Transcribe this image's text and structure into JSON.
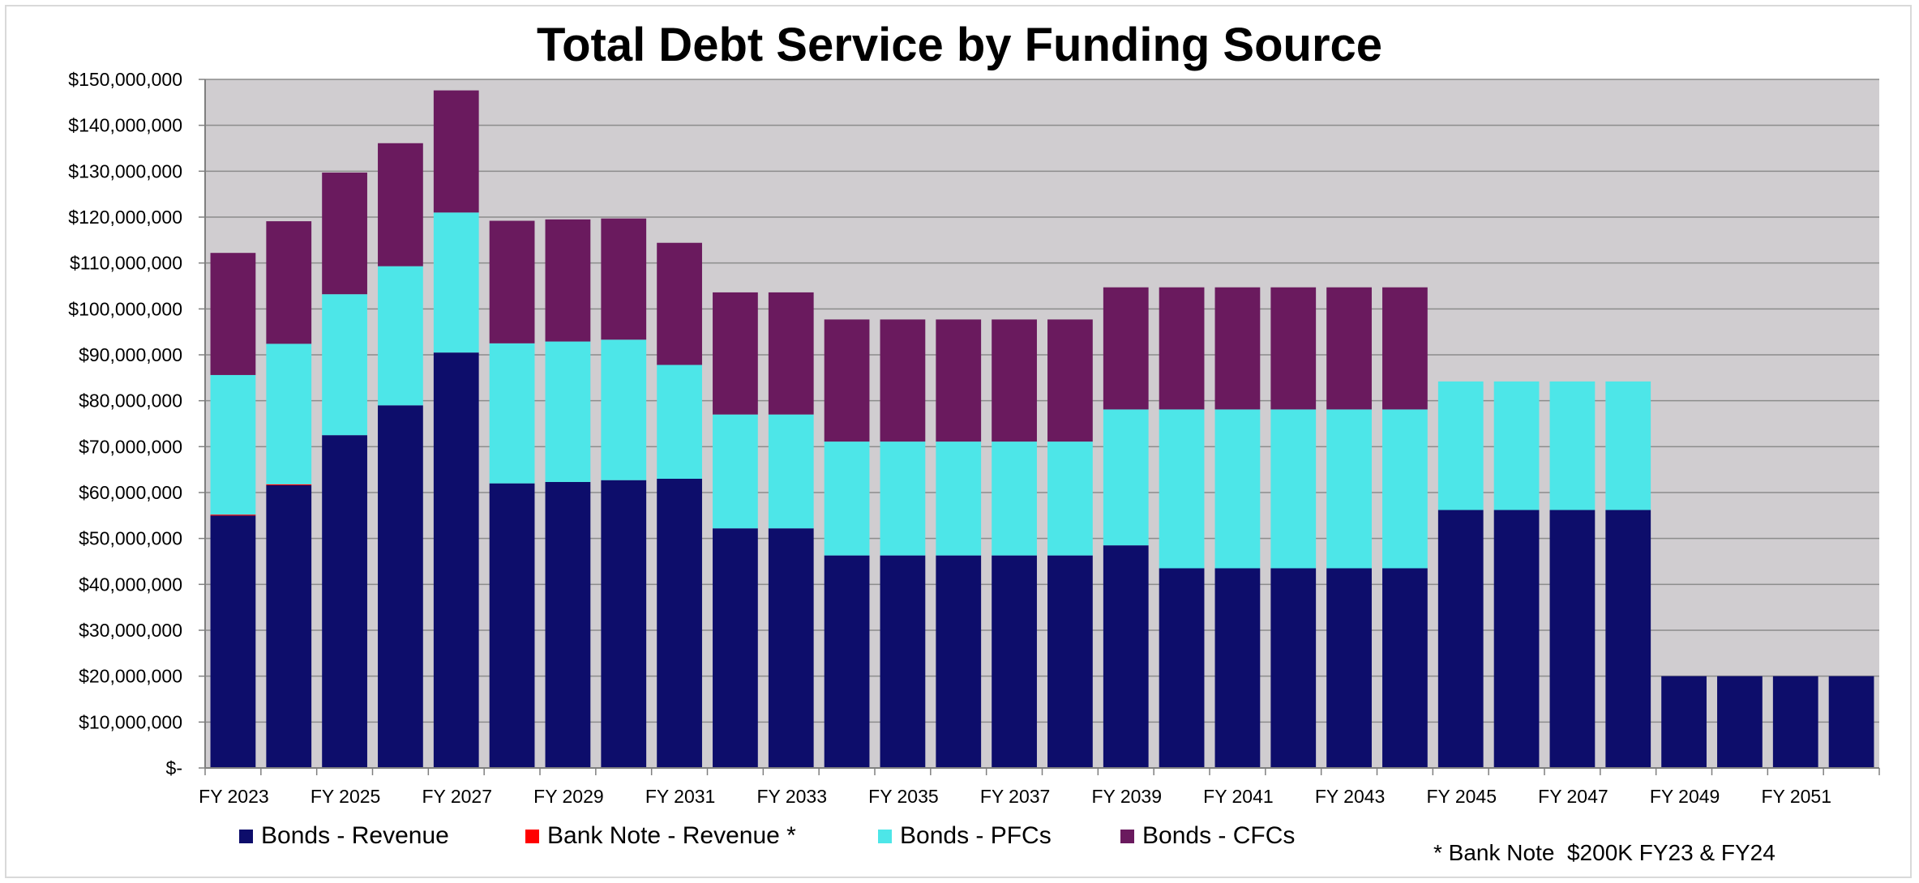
{
  "chart_data": {
    "type": "bar",
    "stacked": true,
    "title": "Total Debt Service by Funding Source",
    "xlabel": "",
    "ylabel": "",
    "ylim": [
      0,
      150000000
    ],
    "y_tick_step": 10000000,
    "y_tick_labels": [
      "$-",
      "$10,000,000",
      "$20,000,000",
      "$30,000,000",
      "$40,000,000",
      "$50,000,000",
      "$60,000,000",
      "$70,000,000",
      "$80,000,000",
      "$90,000,000",
      "$100,000,000",
      "$110,000,000",
      "$120,000,000",
      "$130,000,000",
      "$140,000,000",
      "$150,000,000"
    ],
    "categories": [
      "FY 2023",
      "FY 2024",
      "FY 2025",
      "FY 2026",
      "FY 2027",
      "FY 2028",
      "FY 2029",
      "FY 2030",
      "FY 2031",
      "FY 2032",
      "FY 2033",
      "FY 2034",
      "FY 2035",
      "FY 2036",
      "FY 2037",
      "FY 2038",
      "FY 2039",
      "FY 2040",
      "FY 2041",
      "FY 2042",
      "FY 2043",
      "FY 2044",
      "FY 2045",
      "FY 2046",
      "FY 2047",
      "FY 2048",
      "FY 2049",
      "FY 2050",
      "FY 2051",
      "FY 2052"
    ],
    "x_tick_labels": [
      "FY 2023",
      "",
      "FY 2025",
      "",
      "FY 2027",
      "",
      "FY 2029",
      "",
      "FY 2031",
      "",
      "FY 2033",
      "",
      "FY 2035",
      "",
      "FY 2037",
      "",
      "FY 2039",
      "",
      "FY 2041",
      "",
      "FY 2043",
      "",
      "FY 2045",
      "",
      "FY 2047",
      "",
      "FY 2049",
      "",
      "FY 2051",
      ""
    ],
    "series": [
      {
        "name": "Bonds - Revenue",
        "color": "#0d0d6b",
        "values": [
          55000000,
          61600000,
          72500000,
          79000000,
          90500000,
          62000000,
          62300000,
          62700000,
          63000000,
          52200000,
          52200000,
          46300000,
          46300000,
          46300000,
          46300000,
          46300000,
          48500000,
          43500000,
          43500000,
          43500000,
          43500000,
          43500000,
          56200000,
          56200000,
          56200000,
          56200000,
          20000000,
          20000000,
          20000000,
          20000000
        ]
      },
      {
        "name": "Bank Note - Revenue *",
        "color": "#ff0000",
        "values": [
          200000,
          200000,
          0,
          0,
          0,
          0,
          0,
          0,
          0,
          0,
          0,
          0,
          0,
          0,
          0,
          0,
          0,
          0,
          0,
          0,
          0,
          0,
          0,
          0,
          0,
          0,
          0,
          0,
          0,
          0
        ]
      },
      {
        "name": "Bonds - PFCs",
        "color": "#4de6e8",
        "values": [
          30400000,
          30600000,
          30700000,
          30300000,
          30500000,
          30500000,
          30600000,
          30600000,
          24800000,
          24800000,
          24800000,
          24800000,
          24800000,
          24800000,
          24800000,
          24800000,
          29600000,
          34600000,
          34600000,
          34600000,
          34600000,
          34600000,
          28000000,
          28000000,
          28000000,
          28000000,
          0,
          0,
          0,
          0
        ]
      },
      {
        "name": "Bonds - CFCs",
        "color": "#6a1a5e",
        "values": [
          26600000,
          26700000,
          26500000,
          26800000,
          26600000,
          26700000,
          26600000,
          26400000,
          26600000,
          26600000,
          26600000,
          26600000,
          26600000,
          26600000,
          26600000,
          26600000,
          26600000,
          26600000,
          26600000,
          26600000,
          26600000,
          26600000,
          0,
          0,
          0,
          0,
          0,
          0,
          0,
          0
        ]
      }
    ],
    "legend_position": "bottom",
    "grid": true,
    "plot_background": "#d0cdd0",
    "footnote": "* Bank Note  $200K FY23 & FY24"
  }
}
